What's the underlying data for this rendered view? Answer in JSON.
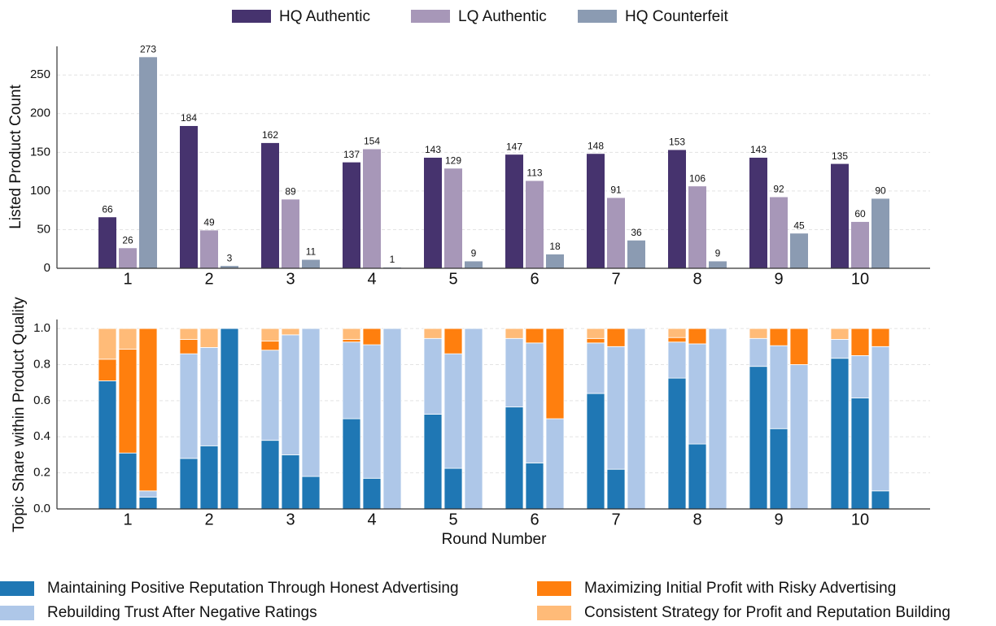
{
  "chart_data": [
    {
      "type": "grouped_bar",
      "ylabel": "Listed Product Count",
      "categories": [
        "1",
        "2",
        "3",
        "4",
        "5",
        "6",
        "7",
        "8",
        "9",
        "10"
      ],
      "series": [
        {
          "name": "HQ Authentic",
          "color": "#46336e",
          "values": [
            66,
            184,
            162,
            137,
            143,
            147,
            148,
            153,
            143,
            135
          ]
        },
        {
          "name": "LQ Authentic",
          "color": "#a797b8",
          "values": [
            26,
            49,
            89,
            154,
            129,
            113,
            91,
            106,
            92,
            60
          ]
        },
        {
          "name": "HQ Counterfeit",
          "color": "#8b9bb2",
          "values": [
            273,
            3,
            11,
            1,
            9,
            18,
            36,
            9,
            45,
            90
          ]
        }
      ],
      "ylim": [
        0,
        287
      ],
      "yticks": [
        0,
        50,
        100,
        150,
        200,
        250
      ],
      "grid": true,
      "legend": "top"
    },
    {
      "type": "stacked_grouped_bar",
      "xlabel": "Round Number",
      "ylabel": "Topic Share within Product Quality",
      "categories": [
        "1",
        "2",
        "3",
        "4",
        "5",
        "6",
        "7",
        "8",
        "9",
        "10"
      ],
      "series": [
        {
          "name": "Maintaining Positive Reputation Through Honest Advertising",
          "color": "#1f77b4",
          "values": [
            [
              0.71,
              0.31,
              0.065
            ],
            [
              0.28,
              0.35,
              1.0
            ],
            [
              0.38,
              0.3,
              0.18
            ],
            [
              0.5,
              0.17,
              0
            ],
            [
              0.525,
              0.225,
              0
            ],
            [
              0.565,
              0.255,
              0
            ],
            [
              0.64,
              0.22,
              0
            ],
            [
              0.725,
              0.36,
              0
            ],
            [
              0.79,
              0.445,
              0
            ],
            [
              0.835,
              0.615,
              0.1
            ]
          ]
        },
        {
          "name": "Rebuilding Trust After Negative Ratings",
          "color": "#aec7e8",
          "values": [
            [
              0,
              0,
              0.035
            ],
            [
              0.58,
              0.545,
              0
            ],
            [
              0.5,
              0.665,
              0.82
            ],
            [
              0.425,
              0.74,
              1.0
            ],
            [
              0.42,
              0.635,
              1.0
            ],
            [
              0.38,
              0.665,
              0.5
            ],
            [
              0.28,
              0.68,
              1.0
            ],
            [
              0.2,
              0.555,
              1.0
            ],
            [
              0.155,
              0.46,
              0.8
            ],
            [
              0.105,
              0.235,
              0.8
            ]
          ]
        },
        {
          "name": "Maximizing Initial Profit with Risky Advertising",
          "color": "#ff7f0e",
          "values": [
            [
              0.12,
              0.575,
              0.9
            ],
            [
              0.08,
              0,
              0
            ],
            [
              0.05,
              0,
              0
            ],
            [
              0.015,
              0.09,
              0
            ],
            [
              0,
              0.14,
              0
            ],
            [
              0,
              0.08,
              0.5
            ],
            [
              0.025,
              0.1,
              0
            ],
            [
              0.025,
              0.085,
              0
            ],
            [
              0,
              0.095,
              0.2
            ],
            [
              0,
              0.15,
              0.1
            ]
          ]
        },
        {
          "name": "Consistent Strategy for Profit and Reputation Building",
          "color": "#ffbb78",
          "values": [
            [
              0.17,
              0.115,
              0
            ],
            [
              0.06,
              0.105,
              0
            ],
            [
              0.07,
              0.035,
              0
            ],
            [
              0.06,
              0,
              0
            ],
            [
              0.055,
              0,
              0
            ],
            [
              0.055,
              0,
              0
            ],
            [
              0.055,
              0,
              0
            ],
            [
              0.05,
              0,
              0
            ],
            [
              0.055,
              0,
              0
            ],
            [
              0.06,
              0,
              0
            ]
          ]
        }
      ],
      "ylim": [
        0,
        1.05
      ],
      "yticks": [
        {
          "value": 0,
          "label": "0.0"
        },
        0.2,
        0.4,
        0.6,
        0.8,
        {
          "value": 1,
          "label": "1.0"
        }
      ],
      "grid": true,
      "legend": "bottom"
    }
  ]
}
